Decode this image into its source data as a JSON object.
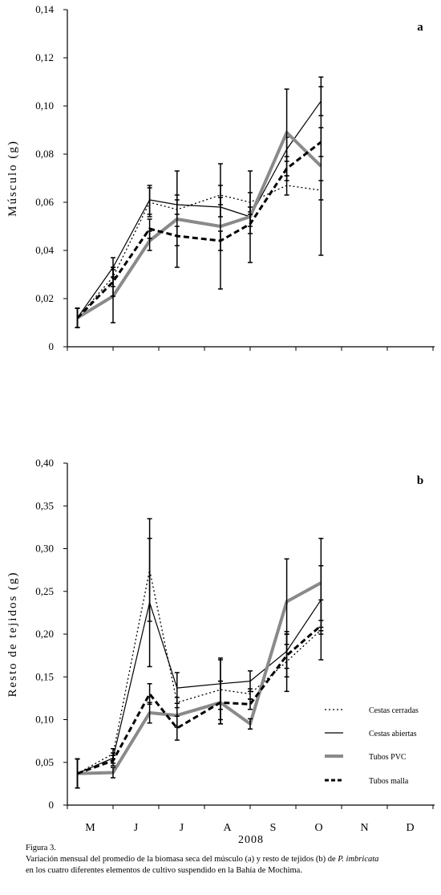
{
  "figure": {
    "caption_title": "Figura 3.",
    "caption_line1": "Variación mensual del promedio de la biomasa seca del músculo (a) y resto de tejidos (b) de ",
    "caption_species": "P. imbricata",
    "caption_line2": "en los cuatro diferentes elementos de cultivo suspendido en la Bahía de Mochima.",
    "shared_xlabel": "2008"
  },
  "legend": {
    "items": [
      {
        "name": "Cestas cerradas",
        "style": "dotted",
        "color": "#000000"
      },
      {
        "name": "Cestas abiertas",
        "style": "solid",
        "color": "#000000"
      },
      {
        "name": "Tubos PVC",
        "style": "thick",
        "color": "#808080"
      },
      {
        "name": "Tubos malla",
        "style": "dashed",
        "color": "#000000"
      }
    ]
  },
  "chart_data": [
    {
      "type": "line",
      "panel_label": "a",
      "ylabel": "Músculo (g)",
      "xlabel": "",
      "ylim": [
        0,
        0.14
      ],
      "yticks": [
        "0",
        "0,02",
        "0,04",
        "0,06",
        "0,08",
        "0,10",
        "0,12",
        "0,14"
      ],
      "x_tick_labels": [],
      "series": [
        {
          "name": "Cestas cerradas",
          "x": [
            0.22,
            1.0,
            1.8,
            2.4,
            3.35,
            4.0,
            4.8,
            5.55
          ],
          "y": [
            0.012,
            0.029,
            0.06,
            0.057,
            0.063,
            0.06,
            0.067,
            0.065
          ],
          "err": [
            0.004,
            0.004,
            0.006,
            0.004,
            0.004,
            0.004,
            0.004,
            0.004
          ]
        },
        {
          "name": "Cestas abiertas",
          "x": [
            0.22,
            1.0,
            1.8,
            2.4,
            3.35,
            4.0,
            4.8,
            5.55
          ],
          "y": [
            0.012,
            0.033,
            0.061,
            0.059,
            0.058,
            0.054,
            0.082,
            0.102
          ],
          "err": [
            0.004,
            0.004,
            0.006,
            0.004,
            0.004,
            0.004,
            0.005,
            0.006
          ]
        },
        {
          "name": "Tubos PVC",
          "x": [
            0.22,
            1.0,
            1.8,
            2.4,
            3.35,
            4.0,
            4.8,
            5.55
          ],
          "y": [
            0.012,
            0.021,
            0.044,
            0.053,
            0.05,
            0.054,
            0.089,
            0.075
          ],
          "err": [
            0.004,
            0.011,
            0.004,
            0.02,
            0.026,
            0.019,
            0.018,
            0.037
          ]
        },
        {
          "name": "Tubos malla",
          "x": [
            0.22,
            1.0,
            1.8,
            2.4,
            3.35,
            4.0,
            4.8,
            5.55
          ],
          "y": [
            0.012,
            0.027,
            0.049,
            0.046,
            0.044,
            0.051,
            0.074,
            0.085
          ],
          "err": [
            0.004,
            0.006,
            0.004,
            0.004,
            0.004,
            0.004,
            0.005,
            0.006
          ]
        }
      ]
    },
    {
      "type": "line",
      "panel_label": "b",
      "ylabel": "Resto de tejidos (g)",
      "xlabel": "2008",
      "ylim": [
        0,
        0.4
      ],
      "yticks": [
        "0",
        "0,05",
        "0,10",
        "0,15",
        "0,20",
        "0,25",
        "0,30",
        "0,35",
        "0,40"
      ],
      "x_tick_labels": [
        "M",
        "J",
        "J",
        "A",
        "S",
        "O",
        "N",
        "D"
      ],
      "series": [
        {
          "name": "Cestas cerradas",
          "x": [
            0.22,
            1.0,
            1.8,
            2.4,
            3.35,
            4.0,
            4.8,
            5.55
          ],
          "y": [
            0.037,
            0.06,
            0.275,
            0.12,
            0.135,
            0.13,
            0.168,
            0.205
          ],
          "err": [
            0.017,
            0.006,
            0.06,
            0.006,
            0.035,
            0.006,
            0.035,
            0.035
          ]
        },
        {
          "name": "Cestas abiertas",
          "x": [
            0.22,
            1.0,
            1.8,
            2.4,
            3.35,
            4.0,
            4.8,
            5.55
          ],
          "y": [
            0.037,
            0.055,
            0.237,
            0.137,
            0.142,
            0.145,
            0.18,
            0.24
          ],
          "err": [
            0.017,
            0.006,
            0.075,
            0.018,
            0.03,
            0.012,
            0.02,
            0.04
          ]
        },
        {
          "name": "Tubos PVC",
          "x": [
            0.22,
            1.0,
            1.8,
            2.4,
            3.35,
            4.0,
            4.8,
            5.55
          ],
          "y": [
            0.037,
            0.038,
            0.108,
            0.105,
            0.12,
            0.095,
            0.238,
            0.26
          ],
          "err": [
            0.017,
            0.006,
            0.012,
            0.014,
            0.025,
            0.006,
            0.05,
            0.052
          ]
        },
        {
          "name": "Tubos malla",
          "x": [
            0.22,
            1.0,
            1.8,
            2.4,
            3.35,
            4.0,
            4.8,
            5.55
          ],
          "y": [
            0.037,
            0.052,
            0.13,
            0.09,
            0.12,
            0.118,
            0.175,
            0.21
          ],
          "err": [
            0.017,
            0.006,
            0.012,
            0.014,
            0.025,
            0.006,
            0.025,
            0.006
          ]
        }
      ]
    }
  ]
}
